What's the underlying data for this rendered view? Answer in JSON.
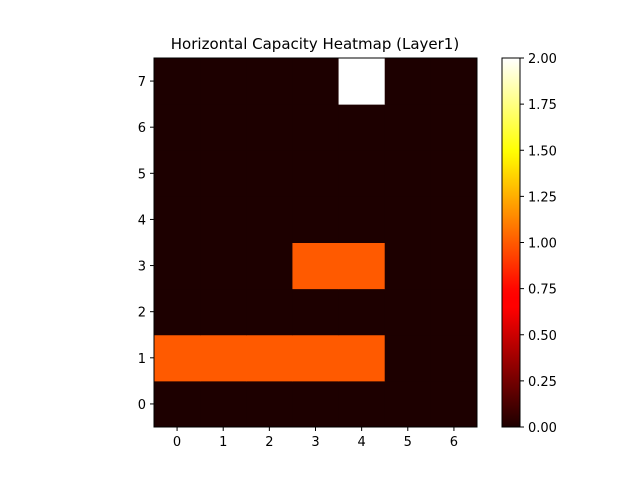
{
  "chart_data": {
    "type": "heatmap",
    "title": "Horizontal Capacity Heatmap (Layer1)",
    "xlabel": "",
    "ylabel": "",
    "x": [
      0,
      1,
      2,
      3,
      4,
      5,
      6
    ],
    "y": [
      0,
      1,
      2,
      3,
      4,
      5,
      6,
      7
    ],
    "x_tick_labels": [
      "0",
      "1",
      "2",
      "3",
      "4",
      "5",
      "6"
    ],
    "y_tick_labels": [
      "0",
      "1",
      "2",
      "3",
      "4",
      "5",
      "6",
      "7"
    ],
    "values": [
      [
        0,
        0,
        0,
        0,
        0,
        0,
        0
      ],
      [
        1,
        1,
        1,
        1,
        1,
        0,
        0
      ],
      [
        0,
        0,
        0,
        0,
        0,
        0,
        0
      ],
      [
        0,
        0,
        0,
        1,
        1,
        0,
        0
      ],
      [
        0,
        0,
        0,
        0,
        0,
        0,
        0
      ],
      [
        0,
        0,
        0,
        0,
        0,
        0,
        0
      ],
      [
        0,
        0,
        0,
        0,
        0,
        0,
        0
      ],
      [
        0,
        0,
        0,
        0,
        2,
        0,
        0
      ]
    ],
    "value_range": [
      0,
      2
    ],
    "colormap": "hot",
    "colorbar": {
      "ticks": [
        0,
        0.25,
        0.5,
        0.75,
        1.0,
        1.25,
        1.5,
        1.75,
        2.0
      ],
      "tick_labels": [
        "0.00",
        "0.25",
        "0.50",
        "0.75",
        "1.00",
        "1.25",
        "1.50",
        "1.75",
        "2.00"
      ]
    },
    "grid": false
  }
}
